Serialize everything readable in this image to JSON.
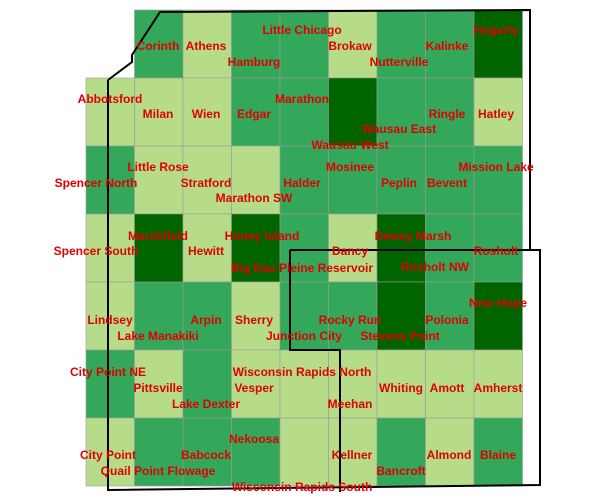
{
  "map": {
    "palette": {
      "L": "#b6dc8a",
      "M": "#34a85a",
      "D": "#006400"
    },
    "grid": [
      "-MLMMLMMD",
      "LLLMMDMML",
      "MLLLMMMMM",
      "LDLDMLDMM",
      "LMMLMMDMD",
      "MLMLLLLLL",
      "LMMMLLMLM"
    ],
    "labels": [
      "Corinth",
      "Athens",
      "Hamburg",
      "Little Chicago",
      "Brokaw",
      "Nutterville",
      "Kalinke",
      "Hogarty",
      "Abbotsford",
      "Milan",
      "Wien",
      "Edgar",
      "Marathon",
      "Wausau East",
      "Wausau West",
      "Ringle",
      "Hatley",
      "Little Rose",
      "Spencer North",
      "Stratford",
      "Marathon SW",
      "Mosinee",
      "Halder",
      "Peplin",
      "Bevent",
      "Mission Lake",
      "Marshfield",
      "Spencer South",
      "Hewitt",
      "Honey Island",
      "Dancy",
      "Dewey Marsh",
      "Rosholt",
      "Big Eau Pleine Reservoir",
      "Rosholt NW",
      "New Hope",
      "Lindsey",
      "Arpin",
      "Sherry",
      "Rocky Run",
      "Polonia",
      "Lake Manakiki",
      "Junction City",
      "Stevens Point",
      "City Point NE",
      "Wisconsin Rapids North",
      "Pittsville",
      "Vesper",
      "Whiting",
      "Amott",
      "Amherst",
      "Lake Dexter",
      "Meehan",
      "Nekoosa",
      "City Point",
      "Babcock",
      "Kellner",
      "Almond",
      "Blaine",
      "Quail Point Flowage",
      "Bancroft",
      "Wisconsin Rapids South"
    ]
  }
}
